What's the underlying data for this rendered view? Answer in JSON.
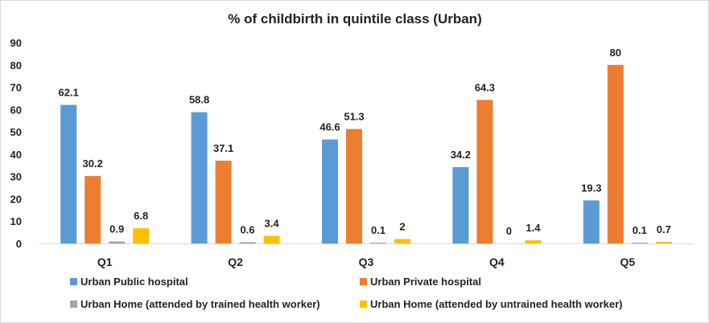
{
  "chart_data": {
    "type": "bar",
    "title": "% of childbirth in quintile class (Urban)",
    "xlabel": "",
    "ylabel": "",
    "categories": [
      "Q1",
      "Q2",
      "Q3",
      "Q4",
      "Q5"
    ],
    "ylim": [
      0,
      90
    ],
    "yticks": [
      0,
      10,
      20,
      30,
      40,
      50,
      60,
      70,
      80,
      90
    ],
    "grid": false,
    "legend": "bottom",
    "series": [
      {
        "name": "Urban Public hospital",
        "color": "#5B9BD5",
        "values": [
          62.1,
          58.8,
          46.6,
          34.2,
          19.3
        ],
        "labels": [
          "62.1",
          "58.8",
          "46.6",
          "34.2",
          "19.3"
        ]
      },
      {
        "name": "Urban Private hospital",
        "color": "#ED7D31",
        "values": [
          30.2,
          37.1,
          51.3,
          64.3,
          80
        ],
        "labels": [
          "30.2",
          "37.1",
          "51.3",
          "64.3",
          "80"
        ]
      },
      {
        "name": "Urban Home (attended by trained health worker)",
        "color": "#A5A5A5",
        "values": [
          0.9,
          0.6,
          0.1,
          0,
          0.1
        ],
        "labels": [
          "0.9",
          "0.6",
          "0.1",
          "0",
          "0.1"
        ]
      },
      {
        "name": "Urban Home (attended by untrained health worker)",
        "color": "#FFC000",
        "values": [
          6.8,
          3.4,
          2,
          1.4,
          0.7
        ],
        "labels": [
          "6.8",
          "3.4",
          "2",
          "1.4",
          "0.7"
        ]
      }
    ]
  }
}
